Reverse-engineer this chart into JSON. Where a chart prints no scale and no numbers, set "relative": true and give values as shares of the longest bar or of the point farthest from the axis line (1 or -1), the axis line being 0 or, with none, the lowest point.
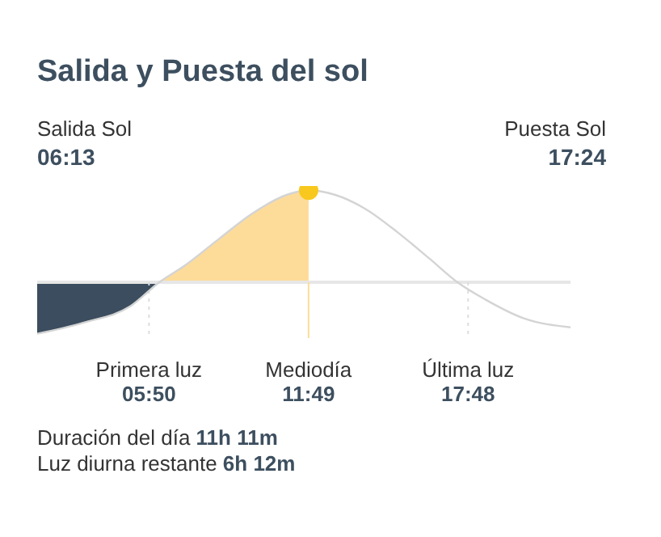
{
  "chart_data": {
    "type": "line",
    "relative": true,
    "title": "Salida y Puesta del sol",
    "xlim": [
      1.64,
      21.64
    ],
    "xticks": [
      {
        "value": 5.833,
        "label": "05:50"
      },
      {
        "value": 11.817,
        "label": "11:49"
      },
      {
        "value": 17.8,
        "label": "17:48"
      }
    ],
    "series": [
      {
        "type": "area",
        "color": "#3b4d5e",
        "x": [
          1.64,
          3.36,
          5.14,
          6.22
        ],
        "values": [
          -0.56,
          -0.44,
          -0.26,
          0
        ]
      },
      {
        "type": "area",
        "color": "#fddc9a",
        "x": [
          6.22,
          7.17,
          8.45,
          9.72,
          10.99,
          11.82
        ],
        "values": [
          0,
          0.18,
          0.47,
          0.75,
          0.95,
          1
        ]
      },
      {
        "color": "#d4d4d4",
        "x": [
          1.64,
          3.36,
          5.14,
          6.22,
          7.17,
          8.45,
          9.72,
          10.99,
          11.82,
          12.82,
          13.99,
          15.17,
          16.34,
          17.4,
          18.46,
          19.87,
          21.64
        ],
        "values": [
          -0.56,
          -0.44,
          -0.26,
          0,
          0.18,
          0.47,
          0.75,
          0.95,
          1,
          0.95,
          0.79,
          0.54,
          0.26,
          0,
          -0.19,
          -0.39,
          -0.49
        ]
      },
      {
        "type": "scatter",
        "color": "#f9c81e",
        "x": [
          11.82
        ],
        "values": [
          1
        ]
      }
    ],
    "ref_lines": [
      {
        "axis": "x",
        "value": 5.833,
        "label": "Primera luz",
        "line_style": "dotted",
        "color": "#dddddd"
      },
      {
        "axis": "x",
        "value": 11.817,
        "label": "Mediodía",
        "color": "#fddc9a"
      },
      {
        "axis": "x",
        "value": 17.8,
        "label": "Última luz",
        "line_style": "dotted",
        "color": "#dddddd"
      }
    ],
    "annotations": [
      "Salida Sol",
      "06:13",
      "Puesta Sol",
      "17:24",
      "Duración del día",
      "11h 11m",
      "Luz diurna restante",
      "6h 12m"
    ]
  }
}
